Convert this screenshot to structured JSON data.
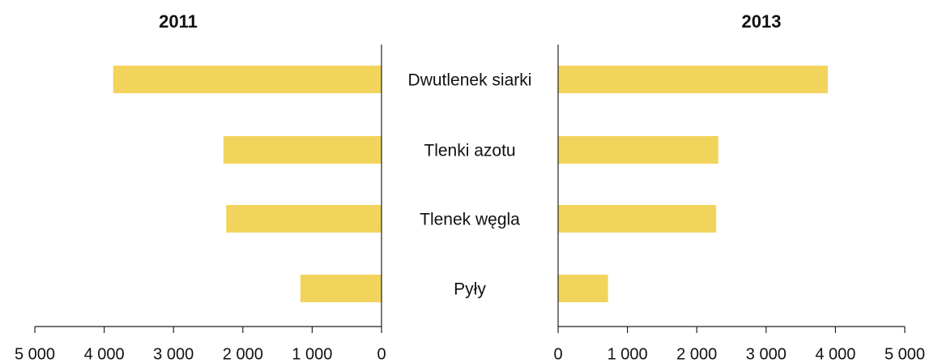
{
  "chart_data": {
    "type": "butterfly-bar",
    "categories": [
      "Dwutlenek siarki",
      "Tlenki azotu",
      "Tlenek węgla",
      "Pyły"
    ],
    "series": [
      {
        "name": "2011",
        "color": "#f2d35b",
        "values": [
          3870,
          2280,
          2240,
          1170
        ]
      },
      {
        "name": "2013",
        "color": "#f2d35b",
        "values": [
          3890,
          2310,
          2280,
          720
        ]
      }
    ],
    "xlim": [
      0,
      5000
    ],
    "xticks": [
      0,
      {
        "value": 1000,
        "label": "1 000"
      },
      {
        "value": 2000,
        "label": "2 000"
      },
      {
        "value": 3000,
        "label": "3 000"
      },
      {
        "value": 4000,
        "label": "4 000"
      },
      {
        "value": 5000,
        "label": "5 000"
      }
    ]
  }
}
